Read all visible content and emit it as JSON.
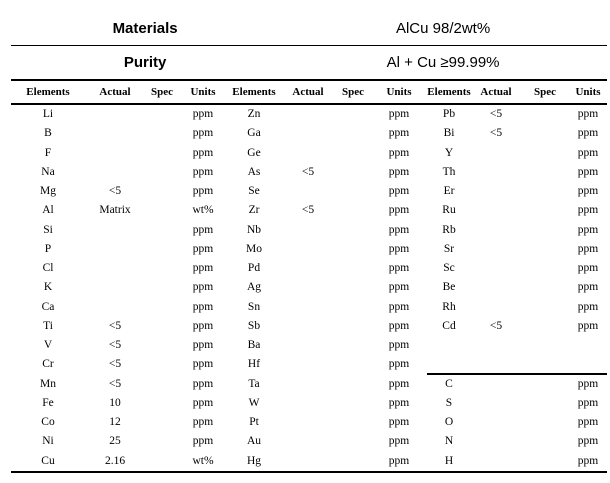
{
  "document": {
    "header": {
      "materials_label": "Materials",
      "materials_value": "AlCu 98/2wt%",
      "purity_label": "Purity",
      "purity_value": "Al + Cu ≥99.99%"
    },
    "column_headers": [
      "Elements",
      "Actual",
      "Spec",
      "Units"
    ],
    "column_group_count": 3,
    "rows": [
      {
        "g1": {
          "el": "Li",
          "actual": "",
          "spec": "",
          "units": "ppm"
        },
        "g2": {
          "el": "Zn",
          "actual": "",
          "spec": "",
          "units": "ppm"
        },
        "g3": {
          "el": "Pb",
          "actual": "<5",
          "spec": "",
          "units": "ppm"
        }
      },
      {
        "g1": {
          "el": "B",
          "actual": "",
          "spec": "",
          "units": "ppm"
        },
        "g2": {
          "el": "Ga",
          "actual": "",
          "spec": "",
          "units": "ppm"
        },
        "g3": {
          "el": "Bi",
          "actual": "<5",
          "spec": "",
          "units": "ppm"
        }
      },
      {
        "g1": {
          "el": "F",
          "actual": "",
          "spec": "",
          "units": "ppm"
        },
        "g2": {
          "el": "Ge",
          "actual": "",
          "spec": "",
          "units": "ppm"
        },
        "g3": {
          "el": "Y",
          "actual": "",
          "spec": "",
          "units": "ppm"
        }
      },
      {
        "g1": {
          "el": "Na",
          "actual": "",
          "spec": "",
          "units": "ppm"
        },
        "g2": {
          "el": "As",
          "actual": "<5",
          "spec": "",
          "units": "ppm"
        },
        "g3": {
          "el": "Th",
          "actual": "",
          "spec": "",
          "units": "ppm"
        }
      },
      {
        "g1": {
          "el": "Mg",
          "actual": "<5",
          "spec": "",
          "units": "ppm"
        },
        "g2": {
          "el": "Se",
          "actual": "",
          "spec": "",
          "units": "ppm"
        },
        "g3": {
          "el": "Er",
          "actual": "",
          "spec": "",
          "units": "ppm"
        }
      },
      {
        "g1": {
          "el": "Al",
          "actual": "Matrix",
          "spec": "",
          "units": "wt%"
        },
        "g2": {
          "el": "Zr",
          "actual": "<5",
          "spec": "",
          "units": "ppm"
        },
        "g3": {
          "el": "Ru",
          "actual": "",
          "spec": "",
          "units": "ppm"
        }
      },
      {
        "g1": {
          "el": "Si",
          "actual": "",
          "spec": "",
          "units": "ppm"
        },
        "g2": {
          "el": "Nb",
          "actual": "",
          "spec": "",
          "units": "ppm"
        },
        "g3": {
          "el": "Rb",
          "actual": "",
          "spec": "",
          "units": "ppm"
        }
      },
      {
        "g1": {
          "el": "P",
          "actual": "",
          "spec": "",
          "units": "ppm"
        },
        "g2": {
          "el": "Mo",
          "actual": "",
          "spec": "",
          "units": "ppm"
        },
        "g3": {
          "el": "Sr",
          "actual": "",
          "spec": "",
          "units": "ppm"
        }
      },
      {
        "g1": {
          "el": "Cl",
          "actual": "",
          "spec": "",
          "units": "ppm"
        },
        "g2": {
          "el": "Pd",
          "actual": "",
          "spec": "",
          "units": "ppm"
        },
        "g3": {
          "el": "Sc",
          "actual": "",
          "spec": "",
          "units": "ppm"
        }
      },
      {
        "g1": {
          "el": "K",
          "actual": "",
          "spec": "",
          "units": "ppm"
        },
        "g2": {
          "el": "Ag",
          "actual": "",
          "spec": "",
          "units": "ppm"
        },
        "g3": {
          "el": "Be",
          "actual": "",
          "spec": "",
          "units": "ppm"
        }
      },
      {
        "g1": {
          "el": "Ca",
          "actual": "",
          "spec": "",
          "units": "ppm"
        },
        "g2": {
          "el": "Sn",
          "actual": "",
          "spec": "",
          "units": "ppm"
        },
        "g3": {
          "el": "Rh",
          "actual": "",
          "spec": "",
          "units": "ppm"
        }
      },
      {
        "g1": {
          "el": "Ti",
          "actual": "<5",
          "spec": "",
          "units": "ppm"
        },
        "g2": {
          "el": "Sb",
          "actual": "",
          "spec": "",
          "units": "ppm"
        },
        "g3": {
          "el": "Cd",
          "actual": "<5",
          "spec": "",
          "units": "ppm"
        }
      },
      {
        "g1": {
          "el": "V",
          "actual": "<5",
          "spec": "",
          "units": "ppm"
        },
        "g2": {
          "el": "Ba",
          "actual": "",
          "spec": "",
          "units": "ppm"
        },
        "g3": {
          "el": "",
          "actual": "",
          "spec": "",
          "units": ""
        }
      },
      {
        "g1": {
          "el": "Cr",
          "actual": "<5",
          "spec": "",
          "units": "ppm"
        },
        "g2": {
          "el": "Hf",
          "actual": "",
          "spec": "",
          "units": "ppm"
        },
        "g3": {
          "el": "",
          "actual": "",
          "spec": "",
          "units": ""
        }
      },
      {
        "g1": {
          "el": "Mn",
          "actual": "<5",
          "spec": "",
          "units": "ppm"
        },
        "g2": {
          "el": "Ta",
          "actual": "",
          "spec": "",
          "units": "ppm"
        },
        "g3": {
          "el": "C",
          "actual": "",
          "spec": "",
          "units": "ppm"
        },
        "rule_above_g3": true
      },
      {
        "g1": {
          "el": "Fe",
          "actual": "10",
          "spec": "",
          "units": "ppm"
        },
        "g2": {
          "el": "W",
          "actual": "",
          "spec": "",
          "units": "ppm"
        },
        "g3": {
          "el": "S",
          "actual": "",
          "spec": "",
          "units": "ppm"
        }
      },
      {
        "g1": {
          "el": "Co",
          "actual": "12",
          "spec": "",
          "units": "ppm"
        },
        "g2": {
          "el": "Pt",
          "actual": "",
          "spec": "",
          "units": "ppm"
        },
        "g3": {
          "el": "O",
          "actual": "",
          "spec": "",
          "units": "ppm"
        }
      },
      {
        "g1": {
          "el": "Ni",
          "actual": "25",
          "spec": "",
          "units": "ppm"
        },
        "g2": {
          "el": "Au",
          "actual": "",
          "spec": "",
          "units": "ppm"
        },
        "g3": {
          "el": "N",
          "actual": "",
          "spec": "",
          "units": "ppm"
        }
      },
      {
        "g1": {
          "el": "Cu",
          "actual": "2.16",
          "spec": "",
          "units": "wt%"
        },
        "g2": {
          "el": "Hg",
          "actual": "",
          "spec": "",
          "units": "ppm"
        },
        "g3": {
          "el": "H",
          "actual": "",
          "spec": "",
          "units": "ppm"
        }
      }
    ]
  }
}
